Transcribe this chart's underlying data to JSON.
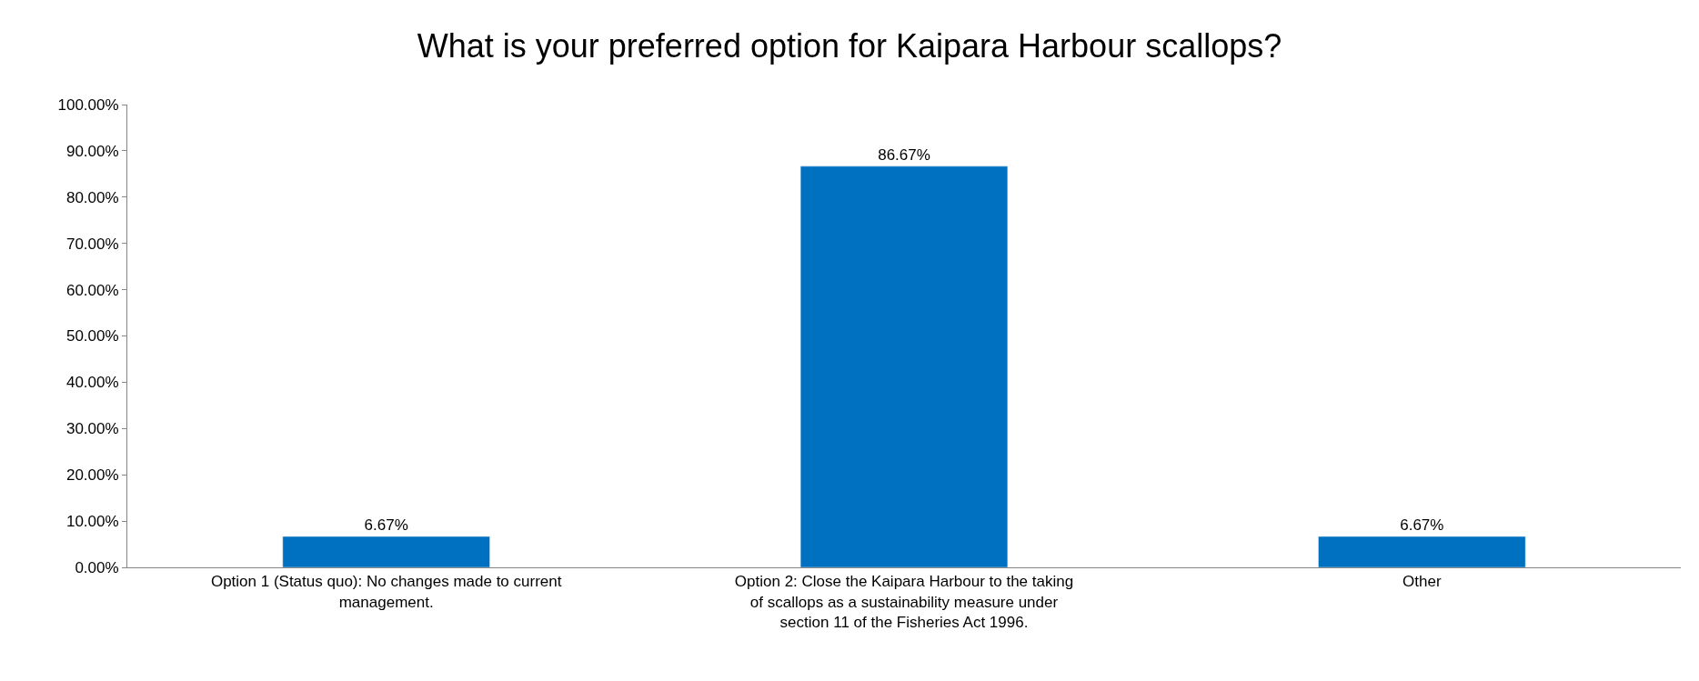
{
  "chart_data": {
    "type": "bar",
    "title": "What is your preferred option for Kaipara Harbour scallops?",
    "categories": [
      "Option 1 (Status quo): No changes made to current management.",
      "Option 2: Close the Kaipara Harbour to the taking of scallops as a sustainability measure under section 11 of the Fisheries Act 1996.",
      "Other"
    ],
    "values": [
      6.67,
      86.67,
      6.67
    ],
    "value_labels": [
      "6.67%",
      "86.67%",
      "6.67%"
    ],
    "color": "#0070c0",
    "ylim": [
      0,
      100
    ],
    "yticks": [
      {
        "value": 0,
        "label": "0.00%"
      },
      {
        "value": 10,
        "label": "10.00%"
      },
      {
        "value": 20,
        "label": "20.00%"
      },
      {
        "value": 30,
        "label": "30.00%"
      },
      {
        "value": 40,
        "label": "40.00%"
      },
      {
        "value": 50,
        "label": "50.00%"
      },
      {
        "value": 60,
        "label": "60.00%"
      },
      {
        "value": 70,
        "label": "70.00%"
      },
      {
        "value": 80,
        "label": "80.00%"
      },
      {
        "value": 90,
        "label": "90.00%"
      },
      {
        "value": 100,
        "label": "100.00%"
      }
    ]
  }
}
